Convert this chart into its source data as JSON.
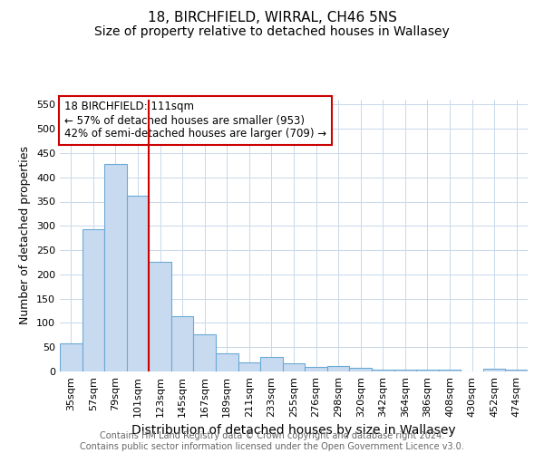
{
  "title": "18, BIRCHFIELD, WIRRAL, CH46 5NS",
  "subtitle": "Size of property relative to detached houses in Wallasey",
  "xlabel": "Distribution of detached houses by size in Wallasey",
  "ylabel": "Number of detached properties",
  "footnote": "Contains HM Land Registry data © Crown copyright and database right 2024.\nContains public sector information licensed under the Open Government Licence v3.0.",
  "bar_labels": [
    "35sqm",
    "57sqm",
    "79sqm",
    "101sqm",
    "123sqm",
    "145sqm",
    "167sqm",
    "189sqm",
    "211sqm",
    "233sqm",
    "255sqm",
    "276sqm",
    "298sqm",
    "320sqm",
    "342sqm",
    "364sqm",
    "386sqm",
    "408sqm",
    "430sqm",
    "452sqm",
    "474sqm"
  ],
  "bar_values": [
    57,
    293,
    428,
    363,
    226,
    113,
    77,
    38,
    19,
    29,
    16,
    9,
    11,
    8,
    4,
    4,
    4,
    4,
    0,
    5,
    4
  ],
  "bar_color": "#c8daf0",
  "bar_edge_color": "#6aaad4",
  "vline_color": "#cc0000",
  "annotation_text": "18 BIRCHFIELD: 111sqm\n← 57% of detached houses are smaller (953)\n42% of semi-detached houses are larger (709) →",
  "annotation_box_color": "#ffffff",
  "annotation_box_edge": "#cc0000",
  "ylim": [
    0,
    560
  ],
  "yticks": [
    0,
    50,
    100,
    150,
    200,
    250,
    300,
    350,
    400,
    450,
    500,
    550
  ],
  "background_color": "#ffffff",
  "grid_color": "#c8d8ea",
  "title_fontsize": 11,
  "subtitle_fontsize": 10,
  "xlabel_fontsize": 10,
  "ylabel_fontsize": 9,
  "tick_fontsize": 8,
  "annotation_fontsize": 8.5,
  "footnote_fontsize": 7,
  "footnote_color": "#666666"
}
